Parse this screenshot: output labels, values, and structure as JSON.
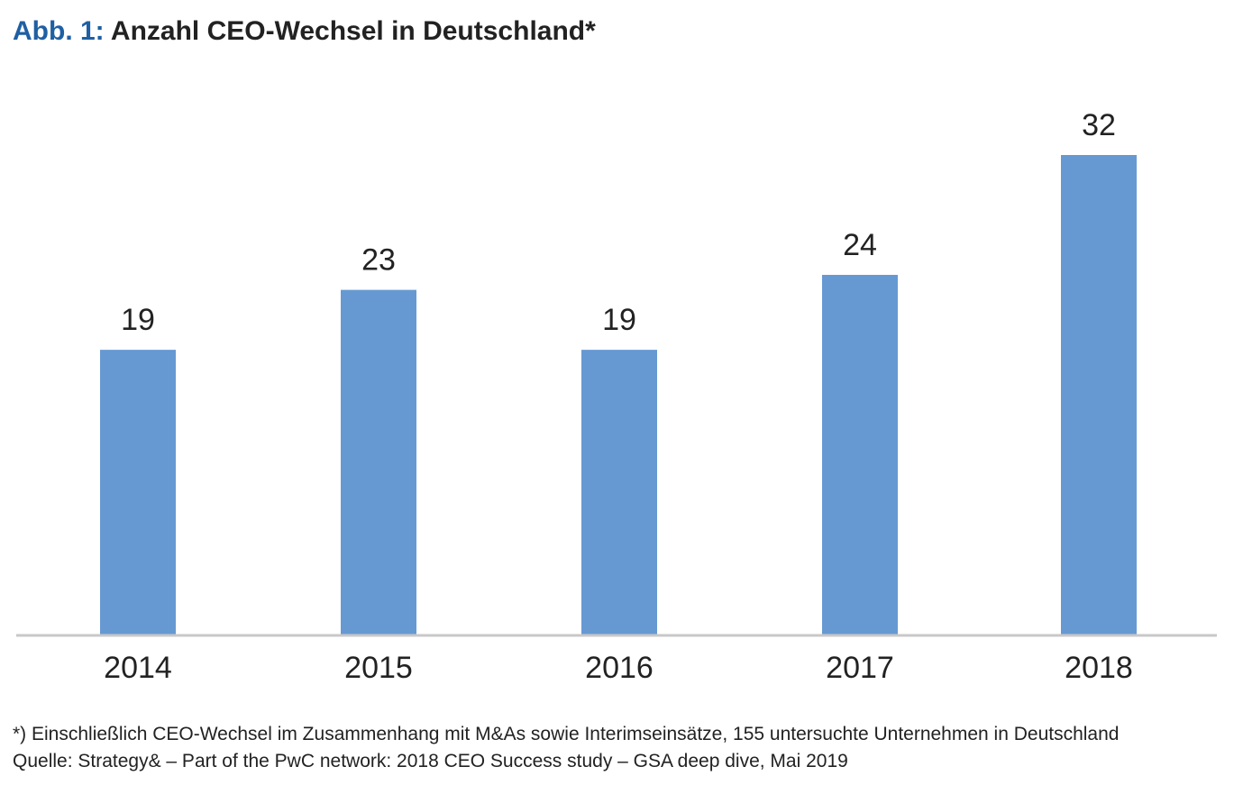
{
  "header": {
    "title_prefix": "Abb. 1:",
    "title_text": "Anzahl CEO-Wechsel in Deutschland*"
  },
  "colors": {
    "bar": "#6699d2",
    "axis": "#c8c8c8",
    "title_prefix": "#1f5fa3",
    "text": "#222222"
  },
  "chart_data": {
    "type": "bar",
    "categories": [
      "2014",
      "2015",
      "2016",
      "2017",
      "2018"
    ],
    "values": [
      19,
      23,
      19,
      24,
      32
    ],
    "title": "Anzahl CEO-Wechsel in Deutschland*",
    "xlabel": "",
    "ylabel": "",
    "ylim": [
      0,
      32
    ],
    "grid": false,
    "legend": "none",
    "data_labels": true
  },
  "footer": {
    "note": "*) Einschließlich CEO-Wechsel im Zusammenhang mit M&As sowie Interimseinsätze, 155 untersuchte Unternehmen in Deutschland",
    "source": "Quelle: Strategy& – Part of the PwC network: 2018 CEO Success study – GSA deep dive, Mai 2019"
  }
}
